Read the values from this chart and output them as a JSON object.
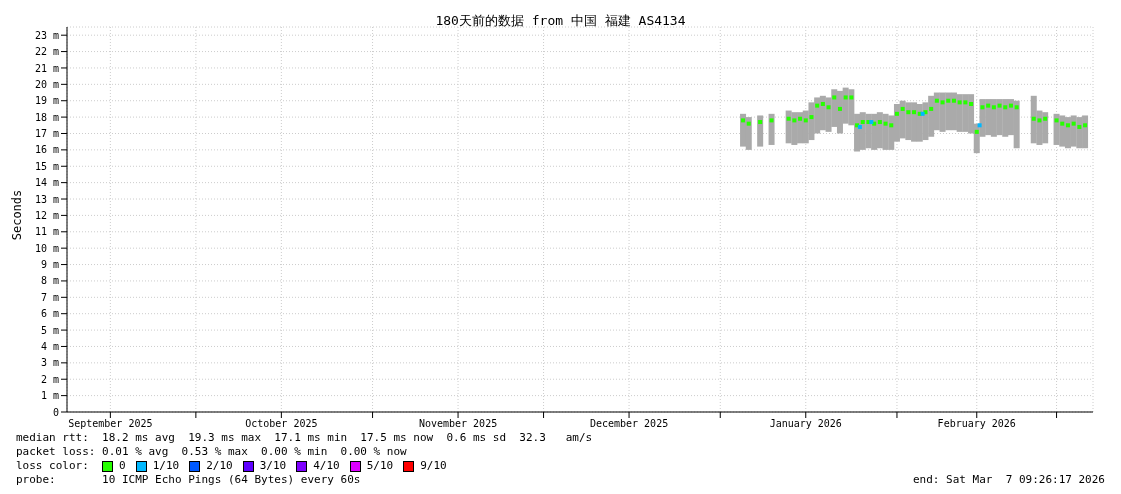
{
  "chart_data": {
    "type": "scatter",
    "title": "180天前的数据 from 中国 福建 AS4134",
    "ylabel": "Seconds",
    "legend_title": "loss color:",
    "legend": "bottom",
    "grid": true,
    "marker": "square",
    "xlim": [
      "2025-09-08T09:26",
      "2026-03-07T09:26"
    ],
    "xticks": [
      {
        "value": "2025-09-16",
        "label": "September 2025"
      },
      {
        "value": "2025-10-01",
        "label": null
      },
      {
        "value": "2025-10-16",
        "label": "October 2025"
      },
      {
        "value": "2025-11-01",
        "label": null
      },
      {
        "value": "2025-11-16",
        "label": "November 2025"
      },
      {
        "value": "2025-12-01",
        "label": null
      },
      {
        "value": "2025-12-16",
        "label": "December 2025"
      },
      {
        "value": "2026-01-01",
        "label": null
      },
      {
        "value": "2026-01-16",
        "label": "January 2026"
      },
      {
        "value": "2026-02-01",
        "label": null
      },
      {
        "value": "2026-02-15",
        "label": "February 2026"
      },
      {
        "value": "2026-03-01",
        "label": null
      }
    ],
    "ylim": [
      0,
      23.5
    ],
    "yticks": [
      0,
      {
        "value": 1,
        "label": "1 m"
      },
      {
        "value": 2,
        "label": "2 m"
      },
      {
        "value": 3,
        "label": "3 m"
      },
      {
        "value": 4,
        "label": "4 m"
      },
      {
        "value": 5,
        "label": "5 m"
      },
      {
        "value": 6,
        "label": "6 m"
      },
      {
        "value": 7,
        "label": "7 m"
      },
      {
        "value": 8,
        "label": "8 m"
      },
      {
        "value": 9,
        "label": "9 m"
      },
      {
        "value": 10,
        "label": "10 m"
      },
      {
        "value": 11,
        "label": "11 m"
      },
      {
        "value": 12,
        "label": "12 m"
      },
      {
        "value": 13,
        "label": "13 m"
      },
      {
        "value": 14,
        "label": "14 m"
      },
      {
        "value": 15,
        "label": "15 m"
      },
      {
        "value": 16,
        "label": "16 m"
      },
      {
        "value": 17,
        "label": "17 m"
      },
      {
        "value": 18,
        "label": "18 m"
      },
      {
        "value": 19,
        "label": "19 m"
      },
      {
        "value": 20,
        "label": "20 m"
      },
      {
        "value": 21,
        "label": "21 m"
      },
      {
        "value": 22,
        "label": "22 m"
      },
      {
        "value": 23,
        "label": "23 m"
      }
    ],
    "series": [
      {
        "name": "0",
        "color": "#26ff00",
        "x": [
          "2026-01-05",
          "2026-01-06",
          "2026-01-07",
          "2026-01-08",
          "2026-01-09",
          "2026-01-10",
          "2026-01-11",
          "2026-01-13",
          "2026-01-14",
          "2026-01-15",
          "2026-01-16",
          "2026-01-17",
          "2026-01-18",
          "2026-01-19",
          "2026-01-20",
          "2026-01-21",
          "2026-01-22",
          "2026-01-23",
          "2026-01-24",
          "2026-01-25",
          "2026-01-26",
          "2026-01-27",
          "2026-01-28",
          "2026-01-29",
          "2026-01-30",
          "2026-01-31",
          "2026-02-01",
          "2026-02-02",
          "2026-02-03",
          "2026-02-04",
          "2026-02-05",
          "2026-02-06",
          "2026-02-07",
          "2026-02-08",
          "2026-02-09",
          "2026-02-10",
          "2026-02-11",
          "2026-02-12",
          "2026-02-13",
          "2026-02-14",
          "2026-02-15",
          "2026-02-16",
          "2026-02-17",
          "2026-02-18",
          "2026-02-19",
          "2026-02-20",
          "2026-02-21",
          "2026-02-22",
          "2026-02-23",
          "2026-02-25",
          "2026-02-26",
          "2026-02-27",
          "2026-02-28",
          "2026-03-01",
          "2026-03-02",
          "2026-03-03",
          "2026-03-04",
          "2026-03-05",
          "2026-03-06"
        ],
        "values": [
          17.8,
          17.6,
          null,
          17.7,
          null,
          17.8,
          null,
          17.9,
          17.8,
          17.9,
          17.8,
          18,
          18.7,
          18.8,
          18.6,
          19.2,
          18.5,
          19.2,
          19.2,
          17.5,
          17.7,
          17.7,
          17.6,
          17.7,
          17.6,
          17.5,
          18.2,
          18.5,
          18.3,
          18.3,
          18.2,
          18.3,
          18.5,
          19,
          18.9,
          19,
          19,
          18.9,
          18.9,
          18.8,
          17.1,
          18.6,
          18.7,
          18.6,
          18.7,
          18.6,
          18.7,
          18.6,
          null,
          17.9,
          17.8,
          17.9,
          null,
          17.8,
          17.6,
          17.5,
          17.6,
          17.4,
          17.5
        ],
        "lower": [
          16.2,
          16,
          null,
          16.2,
          null,
          16.3,
          null,
          16.4,
          16.3,
          16.4,
          16.4,
          16.6,
          17,
          17.2,
          17.1,
          17.4,
          17,
          17.6,
          17.5,
          15.9,
          16,
          16.1,
          16,
          16.1,
          16,
          16,
          16.5,
          16.7,
          16.6,
          16.5,
          16.5,
          16.6,
          16.8,
          17.2,
          17.1,
          17.2,
          17.2,
          17.1,
          17.1,
          17,
          15.8,
          16.8,
          16.9,
          16.8,
          16.9,
          16.8,
          16.9,
          16.1,
          null,
          16.4,
          16.3,
          16.4,
          null,
          16.3,
          16.2,
          16.1,
          16.2,
          16.1,
          16.1
        ],
        "upper": [
          18.2,
          18,
          null,
          18.1,
          null,
          18.2,
          null,
          18.4,
          18.3,
          18.3,
          18.4,
          18.9,
          19.2,
          19.3,
          19.2,
          19.7,
          19.6,
          19.8,
          19.7,
          18.2,
          18.3,
          18.2,
          18.2,
          18.3,
          18.2,
          18.1,
          18.8,
          19,
          18.9,
          18.9,
          18.8,
          18.9,
          19.3,
          19.5,
          19.5,
          19.5,
          19.5,
          19.4,
          19.4,
          19.4,
          17.6,
          19.1,
          19.1,
          19.1,
          19.1,
          19.1,
          19.1,
          19,
          null,
          19.3,
          18.4,
          18.3,
          null,
          18.2,
          18.1,
          18,
          18.1,
          18,
          18.1
        ]
      },
      {
        "name": "1/10",
        "color": "#00b8ff",
        "x": [
          "2026-01-25T12:00",
          "2026-01-27T12:00",
          "2026-02-05T12:00",
          "2026-02-15T12:00"
        ],
        "values": [
          17.4,
          17.7,
          18.2,
          17.5
        ]
      },
      {
        "name": "2/10",
        "color": "#0059ff"
      },
      {
        "name": "3/10",
        "color": "#5e00ff"
      },
      {
        "name": "4/10",
        "color": "#7e00ff"
      },
      {
        "name": "5/10",
        "color": "#dd00ff"
      },
      {
        "name": "9/10",
        "color": "#ff0000"
      }
    ],
    "annotations": [
      "median rtt:  18.2 ms avg  19.3 ms max  17.1 ms min  17.5 ms now  0.6 ms sd  32.3   am/s",
      "packet loss: 0.01 % avg  0.53 % max  0.00 % min  0.00 % now",
      "probe:       10 ICMP Echo Pings (64 Bytes) every 60s",
      "end: Sat Mar  7 09:26:17 2026"
    ]
  }
}
